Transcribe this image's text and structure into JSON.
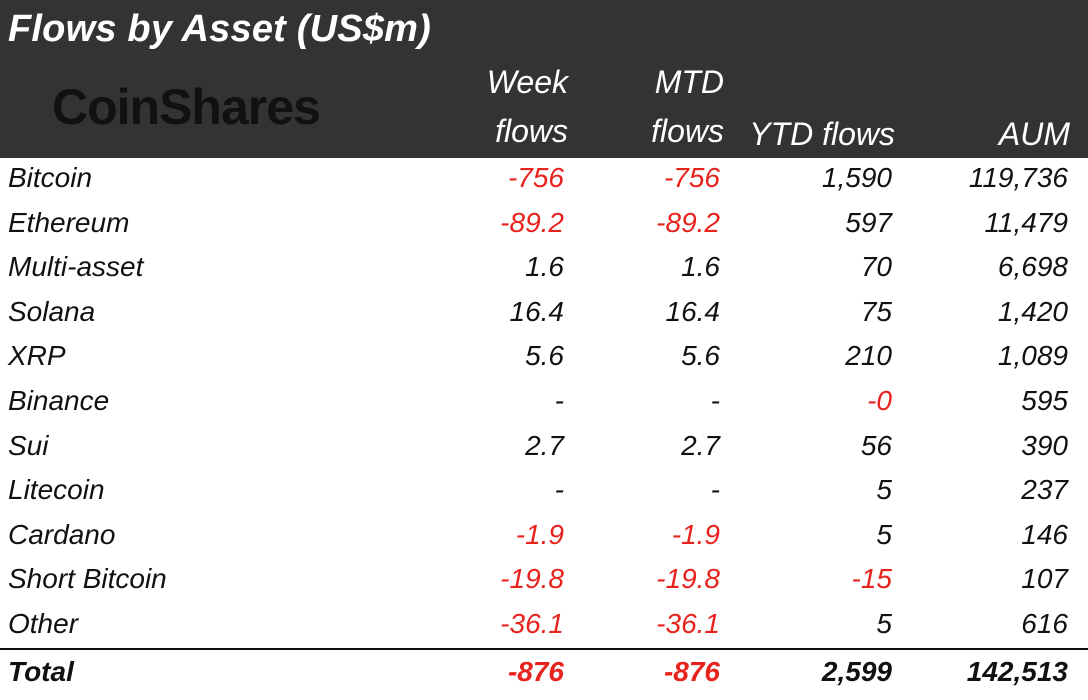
{
  "title": "Flows by Asset (US$m)",
  "logo_text": "CoinShares",
  "columns": {
    "week": [
      "Week",
      "flows"
    ],
    "mtd": [
      "MTD",
      "flows"
    ],
    "ytd": "YTD flows",
    "aum": "AUM"
  },
  "colors": {
    "header_bg": "#333333",
    "negative": "#e8221d",
    "text": "#111111"
  },
  "rows": [
    {
      "asset": "Bitcoin",
      "week": "-756",
      "mtd": "-756",
      "ytd": "1,590",
      "aum": "119,736"
    },
    {
      "asset": "Ethereum",
      "week": "-89.2",
      "mtd": "-89.2",
      "ytd": "597",
      "aum": "11,479"
    },
    {
      "asset": "Multi-asset",
      "week": "1.6",
      "mtd": "1.6",
      "ytd": "70",
      "aum": "6,698"
    },
    {
      "asset": "Solana",
      "week": "16.4",
      "mtd": "16.4",
      "ytd": "75",
      "aum": "1,420"
    },
    {
      "asset": "XRP",
      "week": "5.6",
      "mtd": "5.6",
      "ytd": "210",
      "aum": "1,089"
    },
    {
      "asset": "Binance",
      "week": "-",
      "mtd": "-",
      "ytd": "-0",
      "aum": "595"
    },
    {
      "asset": "Sui",
      "week": "2.7",
      "mtd": "2.7",
      "ytd": "56",
      "aum": "390"
    },
    {
      "asset": "Litecoin",
      "week": "-",
      "mtd": "-",
      "ytd": "5",
      "aum": "237"
    },
    {
      "asset": "Cardano",
      "week": "-1.9",
      "mtd": "-1.9",
      "ytd": "5",
      "aum": "146"
    },
    {
      "asset": "Short Bitcoin",
      "week": "-19.8",
      "mtd": "-19.8",
      "ytd": "-15",
      "aum": "107"
    },
    {
      "asset": "Other",
      "week": "-36.1",
      "mtd": "-36.1",
      "ytd": "5",
      "aum": "616"
    }
  ],
  "total": {
    "label": "Total",
    "week": "-876",
    "mtd": "-876",
    "ytd": "2,599",
    "aum": "142,513"
  }
}
